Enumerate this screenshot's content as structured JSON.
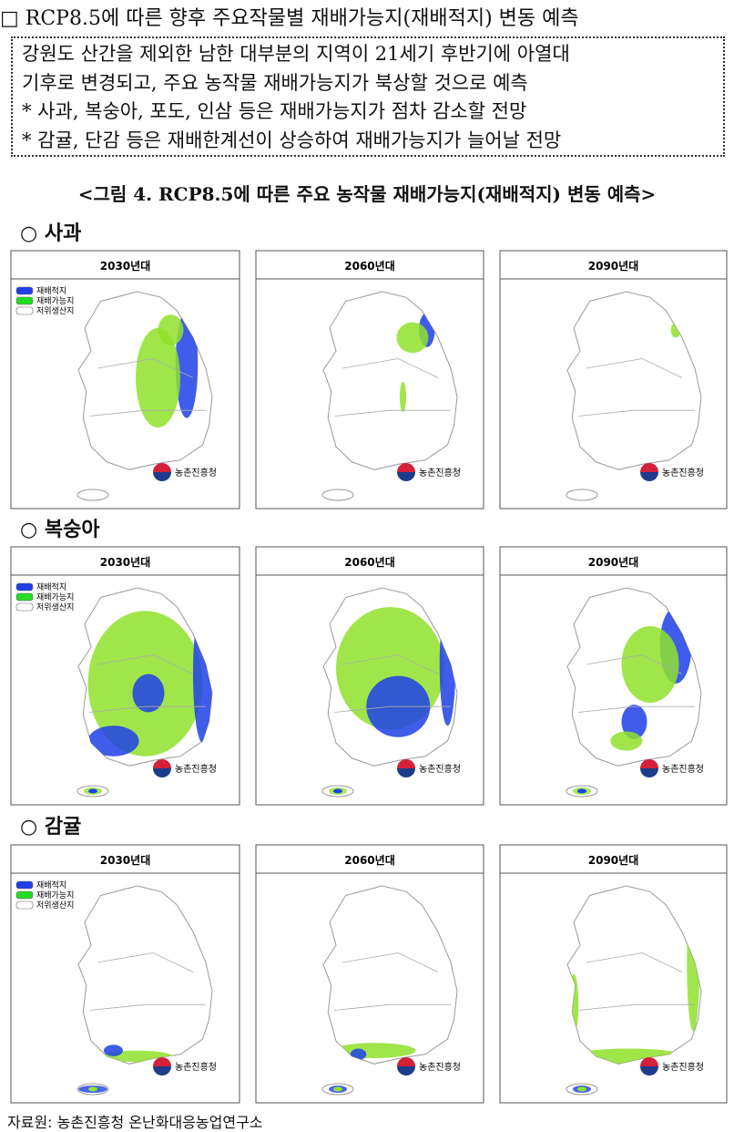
{
  "header": {
    "title": "□ RCP8.5에 따른 향후 주요작물별 재배가능지(재배적지) 변동 예측"
  },
  "summary": {
    "lines": [
      "강원도 산간을 제외한 남한 대부분의 지역이 21세기 후반기에 아열대",
      "기후로 변경되고, 주요 농작물 재배가능지가 북상할 것으로 예측",
      "* 사과, 복숭아, 포도, 인삼 등은 재배가능지가 점차 감소할 전망",
      "* 감귤, 단감 등은 재배한계선이 상승하여 재배가능지가 늘어날 전망"
    ]
  },
  "figure": {
    "caption": "<그림 4. RCP8.5에 따른 주요 농작물 재배가능지(재배적지) 변동 예측>",
    "legend": [
      "재배적지",
      "재배가능지",
      "저위생산지"
    ],
    "logo": "농촌진흥청",
    "sections": [
      {
        "title": "○ 사과",
        "panels": [
          "2030년대",
          "2060년대",
          "2090년대"
        ]
      },
      {
        "title": "○ 복숭아",
        "panels": [
          "2030년대",
          "2060년대",
          "2090년대"
        ]
      },
      {
        "title": "○ 감귤",
        "panels": [
          "2030년대",
          "2060년대",
          "2090년대"
        ]
      }
    ]
  },
  "source": "자료원: 농촌진흥청 온난화대응농업연구소"
}
